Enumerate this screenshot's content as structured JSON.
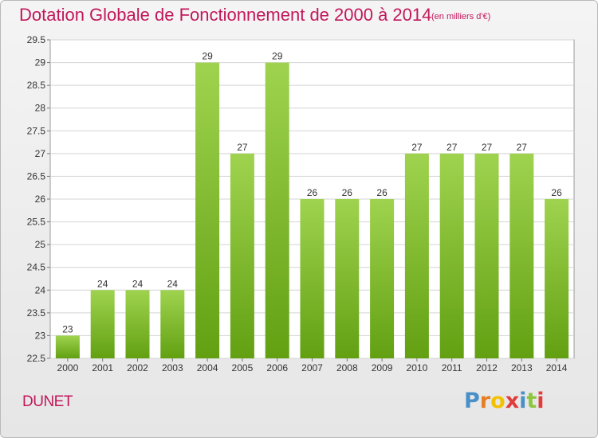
{
  "chart_data": {
    "type": "bar",
    "title": "Dotation Globale de Fonctionnement de 2000 à 2014",
    "subtitle": "(en milliers d'€)",
    "categories": [
      "2000",
      "2001",
      "2002",
      "2003",
      "2004",
      "2005",
      "2006",
      "2007",
      "2008",
      "2009",
      "2010",
      "2011",
      "2012",
      "2013",
      "2014"
    ],
    "values": [
      23,
      24,
      24,
      24,
      29,
      27,
      29,
      26,
      26,
      26,
      27,
      27,
      27,
      27,
      26
    ],
    "ylim": [
      22.5,
      29.5
    ],
    "yticks": [
      "22.5",
      "23",
      "23.5",
      "24",
      "24.5",
      "25",
      "25.5",
      "26",
      "26.5",
      "27",
      "27.5",
      "28",
      "28.5",
      "29",
      "29.5"
    ],
    "grid": true,
    "bar_color": "#8cc63f"
  },
  "place_name": "DUNET",
  "logo": {
    "text": "Proxiti",
    "letter_colors": [
      "#4a90c8",
      "#e67e22",
      "#f2c200",
      "#e23b3b",
      "#4a90c8",
      "#8cc63f",
      "#e23b3b"
    ]
  }
}
